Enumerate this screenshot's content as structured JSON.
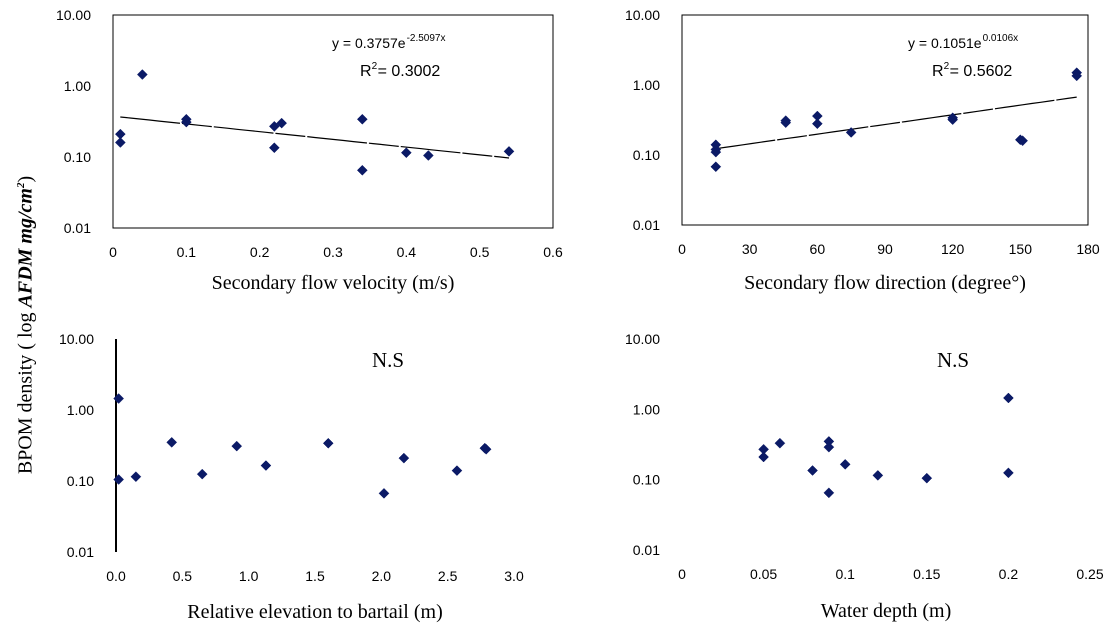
{
  "figure": {
    "ylabel_prefix": "BPOM density ( log ",
    "ylabel_italic": "AFDM mg/cm",
    "ylabel_sup": "2",
    "ylabel_suffix": ")"
  },
  "chart_data": [
    {
      "type": "scatter",
      "xlabel": "Secondary flow velocity (m/s)",
      "ylabel": "BPOM density ( log AFDM mg/cm2)",
      "xlim": [
        0,
        0.6
      ],
      "xticks": [
        "0",
        "0.1",
        "0.2",
        "0.3",
        "0.4",
        "0.5",
        "0.6"
      ],
      "xtick_values": [
        0,
        0.1,
        0.2,
        0.3,
        0.4,
        0.5,
        0.6
      ],
      "yscale": "log",
      "ylim": [
        0.01,
        10
      ],
      "yticks": [
        "0.01",
        "0.10",
        "1.00",
        "10.00"
      ],
      "grid": false,
      "points": [
        {
          "x": 0.01,
          "y": 0.21
        },
        {
          "x": 0.01,
          "y": 0.16
        },
        {
          "x": 0.04,
          "y": 1.45
        },
        {
          "x": 0.1,
          "y": 0.34
        },
        {
          "x": 0.1,
          "y": 0.31
        },
        {
          "x": 0.22,
          "y": 0.27
        },
        {
          "x": 0.22,
          "y": 0.135
        },
        {
          "x": 0.23,
          "y": 0.3
        },
        {
          "x": 0.34,
          "y": 0.34
        },
        {
          "x": 0.34,
          "y": 0.065
        },
        {
          "x": 0.4,
          "y": 0.115
        },
        {
          "x": 0.43,
          "y": 0.105
        },
        {
          "x": 0.54,
          "y": 0.12
        }
      ],
      "trendline": {
        "type": "exponential",
        "a": 0.3757,
        "b": -2.5097,
        "x_range": [
          0.01,
          0.54
        ]
      },
      "equation": {
        "lhs": "y = 0.3757e",
        "exp": "-2.5097x"
      },
      "r2": {
        "label": "R",
        "sup": "2",
        "value": " = 0.3002"
      }
    },
    {
      "type": "scatter",
      "xlabel": "Secondary flow direction (degree°)",
      "ylabel": "BPOM density ( log AFDM mg/cm2)",
      "xlim": [
        0,
        180
      ],
      "xticks": [
        "0",
        "30",
        "60",
        "90",
        "120",
        "150",
        "180"
      ],
      "xtick_values": [
        0,
        30,
        60,
        90,
        120,
        150,
        180
      ],
      "yscale": "log",
      "ylim": [
        0.01,
        10
      ],
      "yticks": [
        "0.01",
        "0.10",
        "1.00",
        "10.00"
      ],
      "grid": false,
      "points": [
        {
          "x": 15,
          "y": 0.14
        },
        {
          "x": 15,
          "y": 0.12
        },
        {
          "x": 15,
          "y": 0.11
        },
        {
          "x": 15,
          "y": 0.068
        },
        {
          "x": 46,
          "y": 0.31
        },
        {
          "x": 46,
          "y": 0.29
        },
        {
          "x": 60,
          "y": 0.36
        },
        {
          "x": 60,
          "y": 0.28
        },
        {
          "x": 75,
          "y": 0.21
        },
        {
          "x": 120,
          "y": 0.34
        },
        {
          "x": 120,
          "y": 0.32
        },
        {
          "x": 150,
          "y": 0.165
        },
        {
          "x": 151,
          "y": 0.16
        },
        {
          "x": 175,
          "y": 1.5
        },
        {
          "x": 175,
          "y": 1.35
        }
      ],
      "trendline": {
        "type": "exponential",
        "a": 0.1051,
        "b": 0.0106,
        "x_range": [
          15,
          175
        ]
      },
      "equation": {
        "lhs": "y = 0.1051e",
        "exp": "0.0106x"
      },
      "r2": {
        "label": "R",
        "sup": "2",
        "value": " = 0.5602"
      }
    },
    {
      "type": "scatter",
      "xlabel": "Relative elevation to bartail (m)",
      "ylabel": "BPOM density ( log AFDM mg/cm2)",
      "xlim": [
        0,
        3
      ],
      "xticks": [
        "0.0",
        "0.5",
        "1.0",
        "1.5",
        "2.0",
        "2.5",
        "3.0"
      ],
      "xtick_values": [
        0,
        0.5,
        1,
        1.5,
        2,
        2.5,
        3
      ],
      "yscale": "log",
      "ylim": [
        0.01,
        10
      ],
      "yticks": [
        "0.01",
        "0.10",
        "1.00",
        "10.00"
      ],
      "grid": false,
      "points": [
        {
          "x": 0.02,
          "y": 1.45
        },
        {
          "x": 0.02,
          "y": 0.105
        },
        {
          "x": 0.15,
          "y": 0.115
        },
        {
          "x": 0.42,
          "y": 0.35
        },
        {
          "x": 0.65,
          "y": 0.125
        },
        {
          "x": 0.91,
          "y": 0.31
        },
        {
          "x": 1.13,
          "y": 0.165
        },
        {
          "x": 1.6,
          "y": 0.34
        },
        {
          "x": 2.02,
          "y": 0.067
        },
        {
          "x": 2.17,
          "y": 0.21
        },
        {
          "x": 2.57,
          "y": 0.14
        },
        {
          "x": 2.78,
          "y": 0.29
        },
        {
          "x": 2.79,
          "y": 0.28
        }
      ],
      "annotation": "N.S"
    },
    {
      "type": "scatter",
      "xlabel": "Water depth (m)",
      "ylabel": "BPOM density ( log AFDM mg/cm2)",
      "xlim": [
        0,
        0.25
      ],
      "xticks": [
        "0",
        "0.05",
        "0.1",
        "0.15",
        "0.2",
        "0.25"
      ],
      "xtick_values": [
        0,
        0.05,
        0.1,
        0.15,
        0.2,
        0.25
      ],
      "yscale": "log",
      "ylim": [
        0.01,
        10
      ],
      "yticks": [
        "0.01",
        "0.10",
        "1.00",
        "10.00"
      ],
      "grid": false,
      "points": [
        {
          "x": 0.05,
          "y": 0.27
        },
        {
          "x": 0.05,
          "y": 0.21
        },
        {
          "x": 0.06,
          "y": 0.33
        },
        {
          "x": 0.08,
          "y": 0.135
        },
        {
          "x": 0.09,
          "y": 0.35
        },
        {
          "x": 0.09,
          "y": 0.29
        },
        {
          "x": 0.09,
          "y": 0.065
        },
        {
          "x": 0.1,
          "y": 0.165
        },
        {
          "x": 0.12,
          "y": 0.115
        },
        {
          "x": 0.15,
          "y": 0.105
        },
        {
          "x": 0.2,
          "y": 1.45
        },
        {
          "x": 0.2,
          "y": 0.125
        }
      ],
      "annotation": "N.S"
    }
  ]
}
